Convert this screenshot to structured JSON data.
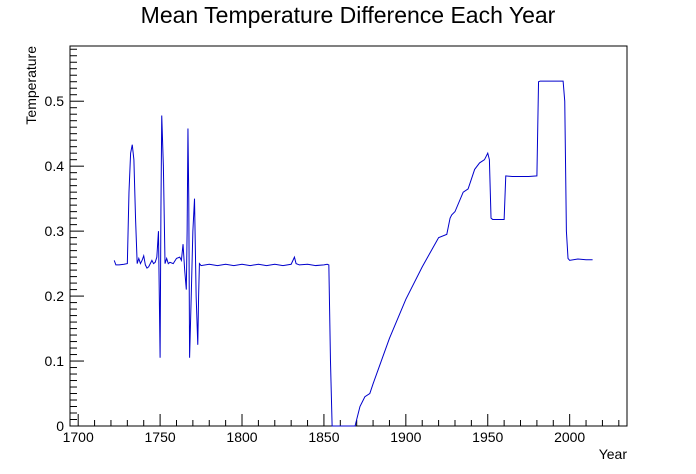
{
  "chart_data": {
    "type": "line",
    "title": "Mean Temperature Difference Each Year",
    "xlabel": "Year",
    "ylabel": "Temperature",
    "xlim": [
      1695,
      2035
    ],
    "ylim": [
      0,
      0.585
    ],
    "x_ticks": [
      1700,
      1750,
      1800,
      1850,
      1900,
      1950,
      2000
    ],
    "y_ticks": [
      0,
      0.1,
      0.2,
      0.3,
      0.4,
      0.5
    ],
    "x_tick_labels": [
      "1700",
      "1750",
      "1800",
      "1850",
      "1900",
      "1950",
      "2000"
    ],
    "y_tick_labels": [
      "0",
      "0.1",
      "0.2",
      "0.3",
      "0.4",
      "0.5"
    ],
    "grid": false,
    "line_color": "#0000cc",
    "series": [
      {
        "x": [
          1722,
          1723,
          1725,
          1728,
          1730,
          1731,
          1732,
          1733,
          1734,
          1735,
          1736,
          1737,
          1738,
          1739,
          1740,
          1741,
          1742,
          1743,
          1744,
          1745,
          1746,
          1747,
          1748,
          1749,
          1750,
          1750.5,
          1751,
          1752,
          1753,
          1754,
          1755,
          1756,
          1758,
          1760,
          1762,
          1763,
          1764,
          1765,
          1766,
          1766.5,
          1767,
          1767.5,
          1768,
          1769,
          1770,
          1771,
          1772,
          1773,
          1773.5,
          1774,
          1775,
          1780,
          1785,
          1790,
          1795,
          1800,
          1805,
          1810,
          1815,
          1820,
          1825,
          1830,
          1832,
          1833,
          1835,
          1840,
          1845,
          1850,
          1852,
          1853,
          1854,
          1855,
          1869,
          1870,
          1872,
          1875,
          1878,
          1880,
          1890,
          1900,
          1910,
          1920,
          1925,
          1927,
          1928,
          1930,
          1935,
          1938,
          1940,
          1942,
          1945,
          1948,
          1950,
          1951,
          1952,
          1953,
          1960,
          1961,
          1965,
          1970,
          1975,
          1980,
          1981,
          1982,
          1990,
          1996,
          1997,
          1998,
          1999,
          2000,
          2005,
          2010,
          2014
        ],
        "y": [
          0.255,
          0.248,
          0.248,
          0.249,
          0.25,
          0.36,
          0.42,
          0.433,
          0.41,
          0.32,
          0.25,
          0.258,
          0.25,
          0.255,
          0.262,
          0.248,
          0.243,
          0.245,
          0.25,
          0.255,
          0.25,
          0.252,
          0.26,
          0.3,
          0.105,
          0.33,
          0.478,
          0.4,
          0.25,
          0.258,
          0.25,
          0.252,
          0.25,
          0.258,
          0.26,
          0.255,
          0.28,
          0.24,
          0.21,
          0.3,
          0.458,
          0.35,
          0.105,
          0.2,
          0.3,
          0.35,
          0.2,
          0.125,
          0.2,
          0.25,
          0.247,
          0.249,
          0.247,
          0.249,
          0.247,
          0.249,
          0.247,
          0.249,
          0.247,
          0.249,
          0.247,
          0.249,
          0.26,
          0.25,
          0.248,
          0.249,
          0.247,
          0.248,
          0.249,
          0.248,
          0.1,
          0.0,
          0.0,
          0.01,
          0.03,
          0.045,
          0.05,
          0.065,
          0.135,
          0.195,
          0.245,
          0.29,
          0.295,
          0.32,
          0.325,
          0.33,
          0.36,
          0.365,
          0.38,
          0.395,
          0.405,
          0.41,
          0.42,
          0.41,
          0.32,
          0.318,
          0.318,
          0.385,
          0.384,
          0.384,
          0.384,
          0.385,
          0.53,
          0.531,
          0.531,
          0.531,
          0.5,
          0.3,
          0.258,
          0.255,
          0.257,
          0.256,
          0.256
        ]
      }
    ]
  }
}
